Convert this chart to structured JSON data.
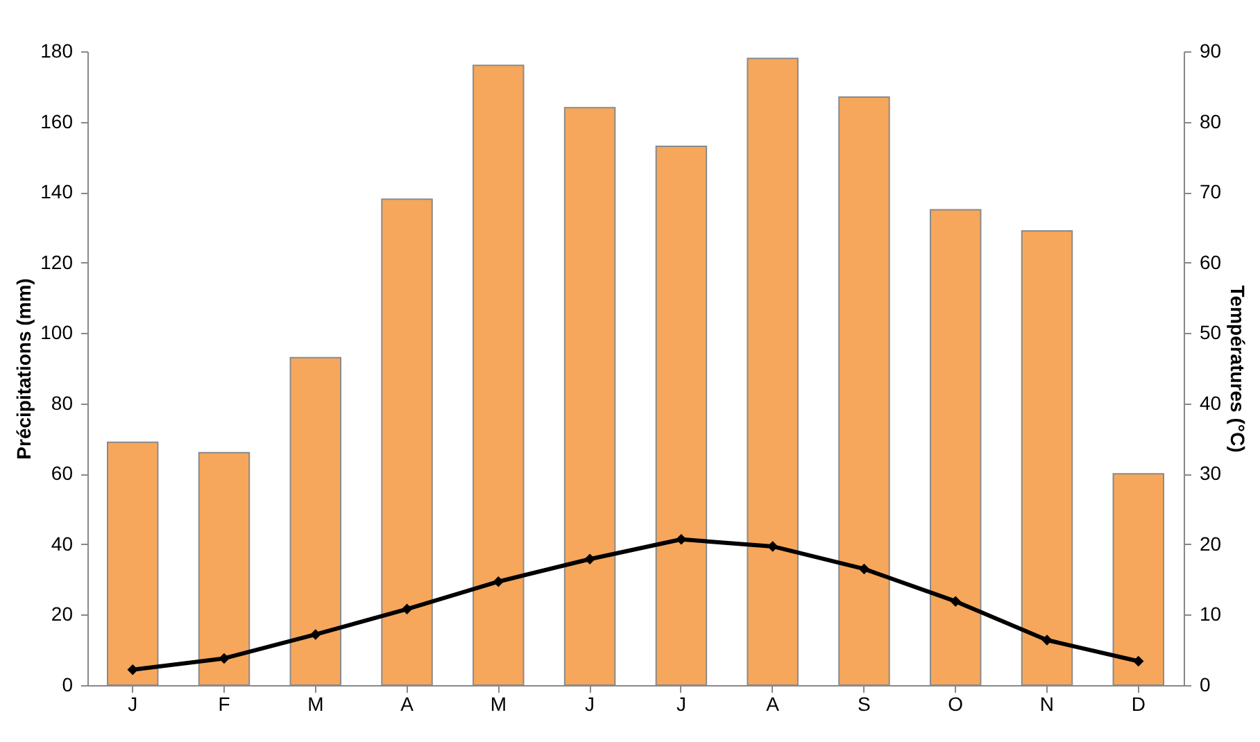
{
  "chart_data": {
    "type": "bar",
    "ylabel": "Précipitations (mm)",
    "y2label": "Températures (°C)",
    "categories": [
      "J",
      "F",
      "M",
      "A",
      "M",
      "J",
      "J",
      "A",
      "S",
      "O",
      "N",
      "D"
    ],
    "series": [
      {
        "color": "#f6a75c",
        "values": [
          69,
          66,
          93,
          138,
          176,
          164,
          153,
          178,
          167,
          135,
          129,
          60
        ]
      },
      {
        "type": "line",
        "axis": "y2",
        "color": "#000000",
        "marker": "diamond",
        "values": [
          2.2,
          3.8,
          7.2,
          10.8,
          14.7,
          17.9,
          20.7,
          19.7,
          16.5,
          11.9,
          6.4,
          3.4
        ]
      }
    ],
    "ylim": [
      0,
      180
    ],
    "yticks": [
      0,
      20,
      40,
      60,
      80,
      100,
      120,
      140,
      160,
      180
    ],
    "y2lim": [
      0,
      90
    ],
    "y2ticks": [
      0,
      10,
      20,
      30,
      40,
      50,
      60,
      70,
      80,
      90
    ],
    "grid": false
  }
}
